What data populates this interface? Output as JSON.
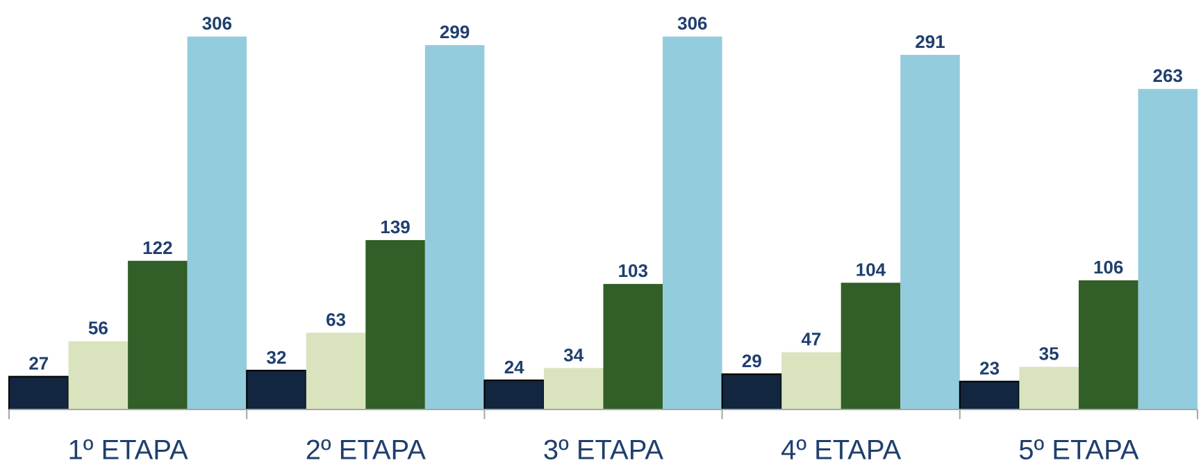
{
  "chart_data": {
    "type": "bar",
    "categories": [
      "1º ETAPA",
      "2º ETAPA",
      "3º ETAPA",
      "4º ETAPA",
      "5º ETAPA"
    ],
    "series": [
      {
        "color": "#12263f",
        "values": [
          27,
          32,
          24,
          29,
          23
        ]
      },
      {
        "color": "#d9e4bf",
        "values": [
          56,
          63,
          34,
          47,
          35
        ]
      },
      {
        "color": "#325e27",
        "values": [
          122,
          139,
          103,
          104,
          106
        ]
      },
      {
        "color": "#93ccdd",
        "values": [
          306,
          299,
          306,
          291,
          263
        ]
      }
    ],
    "ylim": [
      0,
      336
    ]
  }
}
